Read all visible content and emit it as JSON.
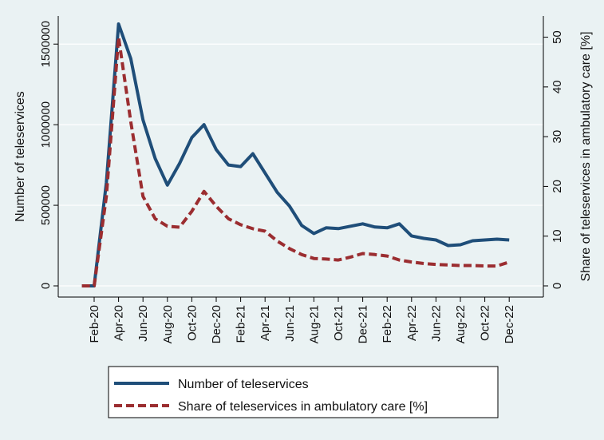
{
  "chart_data": {
    "type": "line",
    "x": [
      "Feb-20",
      "Mar-20",
      "Apr-20",
      "May-20",
      "Jun-20",
      "Jul-20",
      "Aug-20",
      "Sep-20",
      "Oct-20",
      "Nov-20",
      "Dec-20",
      "Jan-21",
      "Feb-21",
      "Mar-21",
      "Apr-21",
      "May-21",
      "Jun-21",
      "Jul-21",
      "Aug-21",
      "Sep-21",
      "Oct-21",
      "Nov-21",
      "Dec-21",
      "Jan-22",
      "Feb-22",
      "Mar-22",
      "Apr-22",
      "May-22",
      "Jun-22",
      "Jul-22",
      "Aug-22",
      "Sep-22",
      "Oct-22",
      "Nov-22",
      "Dec-22"
    ],
    "series_pre_x": [
      "Jan-20"
    ],
    "series": [
      {
        "name": "Number of teleservices",
        "axis": "left",
        "color": "#1f4e79",
        "style": "solid",
        "pre_values": [
          0
        ],
        "values": [
          0,
          640000,
          1625000,
          1410000,
          1030000,
          790000,
          625000,
          760000,
          920000,
          1000000,
          845000,
          750000,
          740000,
          820000,
          700000,
          580000,
          495000,
          375000,
          325000,
          360000,
          355000,
          370000,
          385000,
          365000,
          360000,
          385000,
          310000,
          295000,
          285000,
          250000,
          255000,
          280000,
          285000,
          290000,
          285000
        ]
      },
      {
        "name": "Share of teleservices in ambulatory care [%]",
        "axis": "right",
        "color": "#9b2d30",
        "style": "dashed",
        "pre_values": [
          0
        ],
        "values": [
          0,
          18,
          50,
          33,
          18,
          13.5,
          12,
          11.8,
          15,
          19,
          16,
          13.5,
          12.3,
          11.5,
          11,
          9,
          7.5,
          6.3,
          5.5,
          5.4,
          5.2,
          5.8,
          6.5,
          6.3,
          6,
          5.2,
          4.8,
          4.5,
          4.3,
          4.2,
          4.1,
          4.1,
          4,
          4,
          4.8
        ]
      }
    ],
    "x_tick_labels": [
      "Feb-20",
      "Apr-20",
      "Jun-20",
      "Aug-20",
      "Oct-20",
      "Dec-20",
      "Feb-21",
      "Apr-21",
      "Jun-21",
      "Aug-21",
      "Oct-21",
      "Dec-21",
      "Feb-22",
      "Apr-22",
      "Jun-22",
      "Aug-22",
      "Oct-22",
      "Dec-22"
    ],
    "ylabel": "Number of teleservices",
    "ylabel_right": "Share of teleservices in ambulatory care [%]",
    "ylim": [
      0,
      1620000
    ],
    "ylim_right": [
      0,
      52.5
    ],
    "y_ticks": [
      0,
      500000,
      1000000,
      1500000
    ],
    "y_tick_labels": [
      "0",
      "500000",
      "1000000",
      "1500000"
    ],
    "y_ticks_right": [
      0,
      10,
      20,
      30,
      40,
      50
    ],
    "y_tick_labels_right": [
      "0",
      "10",
      "20",
      "30",
      "40",
      "50"
    ],
    "grid": true,
    "legend_position": "bottom"
  }
}
